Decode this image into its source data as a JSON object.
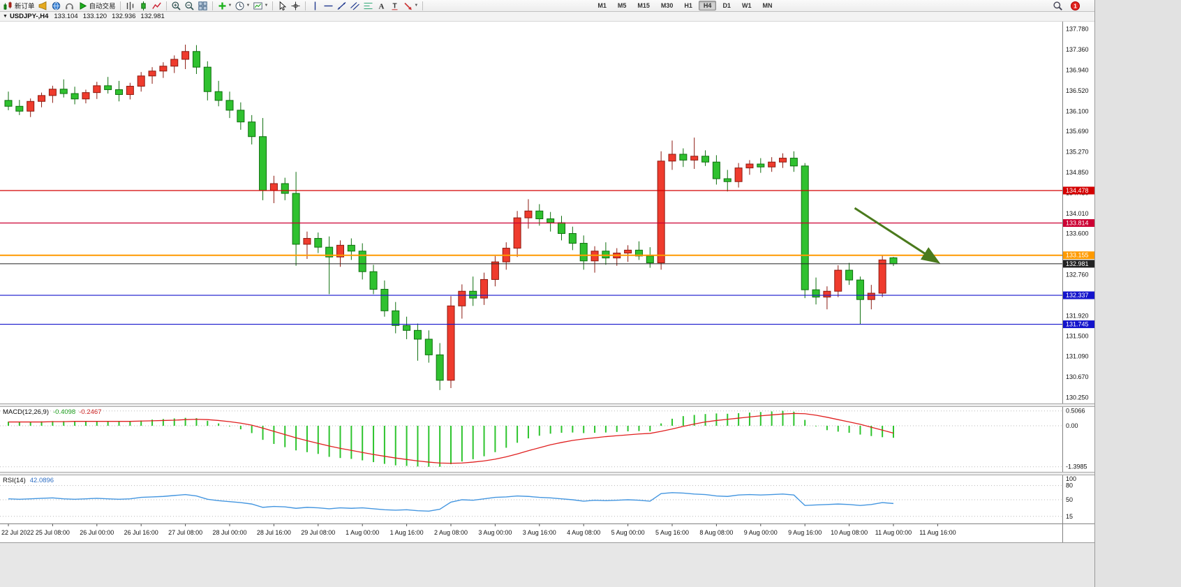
{
  "window": {
    "dropdown_glyph": "▼",
    "title": {
      "symbol_period": "USDJPY-,H4",
      "open": "133.104",
      "high": "133.120",
      "low": "132.936",
      "close": "132.981"
    }
  },
  "toolbar": {
    "buttons": [
      {
        "name": "new-order-button",
        "icon": "new-order",
        "label": "新订单"
      },
      {
        "name": "alert-horn-button",
        "icon": "horn"
      },
      {
        "name": "market-watch-button",
        "icon": "globe"
      },
      {
        "name": "support-button",
        "icon": "headset"
      },
      {
        "name": "autotrading-button",
        "icon": "play",
        "label": "自动交易"
      },
      {
        "sep": true
      },
      {
        "name": "bar-chart-button",
        "icon": "bars"
      },
      {
        "name": "candlestick-chart-button",
        "icon": "candle"
      },
      {
        "name": "line-chart-button",
        "icon": "linechart"
      },
      {
        "sep": true
      },
      {
        "name": "zoom-in-button",
        "icon": "zoomin"
      },
      {
        "name": "zoom-out-button",
        "icon": "zoomout"
      },
      {
        "name": "tile-windows-button",
        "icon": "grid"
      },
      {
        "sep": true
      },
      {
        "name": "indicators-button",
        "icon": "plus",
        "dd": true
      },
      {
        "name": "periods-button",
        "icon": "clock",
        "dd": true
      },
      {
        "name": "templates-button",
        "icon": "template",
        "dd": true
      },
      {
        "sep": true
      },
      {
        "name": "cursor-button",
        "icon": "cursor"
      },
      {
        "name": "crosshair-button",
        "icon": "cross"
      },
      {
        "sep": true
      },
      {
        "name": "vertical-line-button",
        "icon": "vline"
      },
      {
        "name": "horizontal-line-button",
        "icon": "hline"
      },
      {
        "name": "trendline-button",
        "icon": "tline"
      },
      {
        "name": "equidistant-channel-button",
        "icon": "channel"
      },
      {
        "name": "fibonacci-button",
        "icon": "fibo"
      },
      {
        "name": "text-button",
        "icon": "textA"
      },
      {
        "name": "text-label-button",
        "icon": "textT"
      },
      {
        "name": "arrows-button",
        "icon": "arrowsym",
        "dd": true
      },
      {
        "sep": true
      }
    ],
    "timeframes": [
      "M1",
      "M5",
      "M15",
      "M30",
      "H1",
      "H4",
      "D1",
      "W1",
      "MN"
    ],
    "active_timeframe": "H4",
    "notification_count": "1"
  },
  "price_axis": {
    "ticks": [
      "137.780",
      "137.360",
      "136.940",
      "136.520",
      "136.100",
      "135.690",
      "135.270",
      "134.850",
      "134.430",
      "134.010",
      "133.600",
      "132.760",
      "131.920",
      "131.500",
      "131.090",
      "130.670",
      "130.250"
    ]
  },
  "price_tags": [
    {
      "value": "134.478",
      "color": "#d40000"
    },
    {
      "value": "133.814",
      "color": "#cc0033"
    },
    {
      "value": "133.155",
      "color": "#ff9a00"
    },
    {
      "value": "132.981",
      "color": "#222222"
    },
    {
      "value": "132.337",
      "color": "#1414cc"
    },
    {
      "value": "131.745",
      "color": "#1414cc"
    }
  ],
  "time_axis": {
    "labels": [
      "22 Jul 2022",
      "25 Jul 08:00",
      "26 Jul 00:00",
      "26 Jul 16:00",
      "27 Jul 08:00",
      "28 Jul 00:00",
      "28 Jul 16:00",
      "29 Jul 08:00",
      "1 Aug 00:00",
      "1 Aug 16:00",
      "2 Aug 08:00",
      "3 Aug 00:00",
      "3 Aug 16:00",
      "4 Aug 08:00",
      "5 Aug 00:00",
      "5 Aug 16:00",
      "8 Aug 08:00",
      "9 Aug 00:00",
      "9 Aug 16:00",
      "10 Aug 08:00",
      "11 Aug 00:00",
      "11 Aug 16:00"
    ]
  },
  "macd_panel": {
    "name": "MACD(12,26,9)",
    "value_main": "-0.4098",
    "value_signal": "-0.2467",
    "scale_labels": [
      "0.5066",
      "0.00",
      "-1.3985"
    ]
  },
  "rsi_panel": {
    "name": "RSI(14)",
    "value": "42.0896",
    "scale_labels": [
      "100",
      "80",
      "50",
      "15"
    ]
  },
  "colors": {
    "bull": "#ef3b2d",
    "bull_stroke": "#8c1a10",
    "bear": "#2fc12f",
    "bear_stroke": "#0e6f0e",
    "macd_hist": "#2dc42d",
    "macd_signal": "#e02020",
    "rsi_line": "#4496e0",
    "axis_text": "#111111",
    "arrow": "#4a7a1c"
  },
  "chart_data": [
    {
      "type": "candlestick",
      "title": "USDJPY- H4",
      "x_start": "2022.07.22 16:00",
      "x_step_hours": 4,
      "note": "H4 bars, weekends skipped; last bar OHLC shown in title",
      "ylim": [
        130.13,
        137.93
      ],
      "ohlc": [
        [
          136.32,
          136.5,
          136.12,
          136.2
        ],
        [
          136.2,
          136.33,
          136.02,
          136.1
        ],
        [
          136.1,
          136.36,
          135.98,
          136.3
        ],
        [
          136.3,
          136.48,
          136.18,
          136.42
        ],
        [
          136.42,
          136.62,
          136.27,
          136.55
        ],
        [
          136.55,
          136.75,
          136.38,
          136.46
        ],
        [
          136.46,
          136.6,
          136.24,
          136.35
        ],
        [
          136.35,
          136.54,
          136.26,
          136.48
        ],
        [
          136.48,
          136.7,
          136.35,
          136.62
        ],
        [
          136.62,
          136.8,
          136.46,
          136.54
        ],
        [
          136.54,
          136.72,
          136.3,
          136.44
        ],
        [
          136.44,
          136.68,
          136.34,
          136.61
        ],
        [
          136.61,
          136.9,
          136.5,
          136.82
        ],
        [
          136.82,
          137.0,
          136.66,
          136.92
        ],
        [
          136.92,
          137.1,
          136.78,
          137.02
        ],
        [
          137.02,
          137.24,
          136.88,
          137.16
        ],
        [
          137.16,
          137.46,
          136.96,
          137.32
        ],
        [
          137.32,
          137.45,
          136.86,
          137.0
        ],
        [
          137.0,
          137.12,
          136.32,
          136.5
        ],
        [
          136.5,
          136.72,
          136.2,
          136.32
        ],
        [
          136.32,
          136.5,
          135.96,
          136.12
        ],
        [
          136.12,
          136.28,
          135.72,
          135.88
        ],
        [
          135.88,
          136.02,
          135.42,
          135.58
        ],
        [
          135.58,
          135.96,
          134.28,
          134.48
        ],
        [
          134.48,
          134.78,
          134.22,
          134.62
        ],
        [
          134.62,
          134.74,
          134.28,
          134.42
        ],
        [
          134.42,
          134.86,
          132.94,
          133.38
        ],
        [
          133.38,
          133.64,
          133.08,
          133.5
        ],
        [
          133.5,
          133.62,
          133.2,
          133.32
        ],
        [
          133.32,
          133.54,
          132.36,
          133.12
        ],
        [
          133.12,
          133.46,
          132.92,
          133.36
        ],
        [
          133.36,
          133.5,
          133.06,
          133.24
        ],
        [
          133.24,
          133.4,
          132.66,
          132.82
        ],
        [
          132.82,
          132.96,
          132.36,
          132.46
        ],
        [
          132.46,
          132.64,
          131.9,
          132.02
        ],
        [
          132.02,
          132.2,
          131.56,
          131.72
        ],
        [
          131.72,
          131.9,
          131.44,
          131.62
        ],
        [
          131.62,
          131.76,
          131.0,
          131.44
        ],
        [
          131.44,
          131.62,
          130.96,
          131.12
        ],
        [
          131.12,
          131.36,
          130.4,
          130.6
        ],
        [
          130.6,
          132.32,
          130.44,
          132.12
        ],
        [
          132.12,
          132.56,
          131.86,
          132.42
        ],
        [
          132.42,
          132.72,
          132.12,
          132.28
        ],
        [
          132.28,
          132.8,
          132.14,
          132.66
        ],
        [
          132.66,
          133.14,
          132.52,
          133.02
        ],
        [
          133.02,
          133.42,
          132.86,
          133.3
        ],
        [
          133.3,
          134.06,
          133.12,
          133.92
        ],
        [
          133.92,
          134.3,
          133.7,
          134.06
        ],
        [
          134.06,
          134.2,
          133.76,
          133.9
        ],
        [
          133.9,
          134.04,
          133.64,
          133.82
        ],
        [
          133.82,
          133.96,
          133.46,
          133.6
        ],
        [
          133.6,
          133.74,
          133.26,
          133.4
        ],
        [
          133.4,
          133.56,
          132.86,
          133.04
        ],
        [
          133.04,
          133.34,
          132.8,
          133.24
        ],
        [
          133.24,
          133.42,
          132.96,
          133.1
        ],
        [
          133.1,
          133.3,
          132.94,
          133.2
        ],
        [
          133.2,
          133.36,
          133.02,
          133.26
        ],
        [
          133.26,
          133.44,
          133.06,
          133.14
        ],
        [
          133.14,
          133.32,
          132.9,
          133.0
        ],
        [
          133.0,
          135.28,
          132.86,
          135.08
        ],
        [
          135.08,
          135.5,
          134.9,
          135.22
        ],
        [
          135.22,
          135.34,
          134.96,
          135.1
        ],
        [
          135.1,
          135.56,
          134.92,
          135.18
        ],
        [
          135.18,
          135.3,
          134.98,
          135.06
        ],
        [
          135.06,
          135.2,
          134.6,
          134.72
        ],
        [
          134.72,
          134.9,
          134.46,
          134.66
        ],
        [
          134.66,
          135.04,
          134.54,
          134.94
        ],
        [
          134.94,
          135.1,
          134.8,
          135.02
        ],
        [
          135.02,
          135.14,
          134.84,
          134.96
        ],
        [
          134.96,
          135.16,
          134.86,
          135.06
        ],
        [
          135.06,
          135.24,
          134.94,
          135.14
        ],
        [
          135.14,
          135.28,
          134.86,
          134.98
        ],
        [
          134.98,
          135.04,
          132.28,
          132.45
        ],
        [
          132.45,
          132.7,
          132.15,
          132.3
        ],
        [
          132.3,
          132.52,
          132.05,
          132.42
        ],
        [
          132.42,
          132.95,
          132.3,
          132.85
        ],
        [
          132.85,
          133.0,
          132.55,
          132.65
        ],
        [
          132.65,
          132.72,
          131.75,
          132.25
        ],
        [
          132.25,
          132.55,
          132.05,
          132.38
        ],
        [
          132.38,
          133.15,
          132.3,
          133.06
        ],
        [
          133.104,
          133.12,
          132.936,
          132.981
        ]
      ],
      "horizontal_lines": [
        {
          "price": 134.478,
          "color": "#d40000",
          "width": 1.2
        },
        {
          "price": 133.814,
          "color": "#cc0033",
          "width": 1.2
        },
        {
          "price": 133.155,
          "color": "#ff9a00",
          "width": 2
        },
        {
          "price": 132.981,
          "color": "#222222",
          "width": 1
        },
        {
          "price": 132.337,
          "color": "#1414cc",
          "width": 1.2
        },
        {
          "price": 131.745,
          "color": "#1414cc",
          "width": 1.2
        }
      ],
      "annotation_arrow": {
        "from": {
          "bar": 76.5,
          "price": 134.12
        },
        "to": {
          "bar": 84,
          "price": 133.02
        },
        "color": "#4a7a1c"
      }
    },
    {
      "type": "bar",
      "title": "MACD(12,26,9)",
      "ylim": [
        -1.52,
        0.62
      ],
      "scale_labels": [
        0.5066,
        0.0,
        -1.3985
      ],
      "histogram": [
        0.14,
        0.13,
        0.14,
        0.15,
        0.16,
        0.16,
        0.15,
        0.15,
        0.16,
        0.16,
        0.15,
        0.16,
        0.18,
        0.21,
        0.23,
        0.25,
        0.27,
        0.26,
        0.17,
        0.08,
        -0.02,
        -0.12,
        -0.25,
        -0.48,
        -0.62,
        -0.73,
        -0.84,
        -0.9,
        -0.96,
        -1.06,
        -1.1,
        -1.13,
        -1.18,
        -1.24,
        -1.3,
        -1.35,
        -1.37,
        -1.39,
        -1.4,
        -1.4,
        -1.31,
        -1.22,
        -1.14,
        -1.04,
        -0.9,
        -0.75,
        -0.58,
        -0.43,
        -0.34,
        -0.27,
        -0.24,
        -0.23,
        -0.25,
        -0.24,
        -0.23,
        -0.21,
        -0.19,
        -0.18,
        -0.19,
        0.08,
        0.24,
        0.33,
        0.37,
        0.4,
        0.42,
        0.41,
        0.43,
        0.45,
        0.47,
        0.49,
        0.51,
        0.48,
        0.2,
        -0.02,
        -0.15,
        -0.2,
        -0.24,
        -0.3,
        -0.35,
        -0.39,
        -0.41
      ],
      "signal_line": [
        0.13,
        0.13,
        0.13,
        0.13,
        0.14,
        0.14,
        0.15,
        0.15,
        0.15,
        0.15,
        0.15,
        0.15,
        0.16,
        0.17,
        0.18,
        0.19,
        0.21,
        0.22,
        0.21,
        0.18,
        0.14,
        0.09,
        0.02,
        -0.08,
        -0.19,
        -0.3,
        -0.41,
        -0.51,
        -0.6,
        -0.69,
        -0.77,
        -0.84,
        -0.91,
        -0.98,
        -1.04,
        -1.1,
        -1.15,
        -1.2,
        -1.24,
        -1.27,
        -1.28,
        -1.27,
        -1.24,
        -1.2,
        -1.14,
        -1.06,
        -0.96,
        -0.85,
        -0.75,
        -0.65,
        -0.57,
        -0.5,
        -0.45,
        -0.41,
        -0.37,
        -0.34,
        -0.31,
        -0.28,
        -0.26,
        -0.19,
        -0.11,
        -0.02,
        0.06,
        0.13,
        0.18,
        0.22,
        0.26,
        0.3,
        0.34,
        0.37,
        0.4,
        0.42,
        0.41,
        0.36,
        0.29,
        0.21,
        0.13,
        0.05,
        -0.05,
        -0.15,
        -0.25
      ],
      "current_values": [
        -0.4098,
        -0.2467
      ]
    },
    {
      "type": "line",
      "title": "RSI(14)",
      "ylim": [
        0,
        100
      ],
      "levels": [
        80,
        50,
        15
      ],
      "current": 42.0896,
      "values": [
        52,
        51,
        52,
        53,
        54,
        52,
        51,
        52,
        53,
        52,
        51,
        52,
        55,
        56,
        57,
        59,
        61,
        58,
        51,
        48,
        46,
        44,
        41,
        34,
        36,
        35,
        32,
        34,
        33,
        31,
        33,
        32,
        33,
        31,
        29,
        28,
        29,
        27,
        26,
        30,
        45,
        50,
        49,
        52,
        55,
        56,
        58,
        57,
        55,
        54,
        52,
        50,
        47,
        49,
        48,
        49,
        50,
        49,
        47,
        63,
        65,
        64,
        62,
        61,
        58,
        57,
        60,
        61,
        60,
        61,
        62,
        60,
        38,
        39,
        40,
        41,
        40,
        38,
        40,
        44,
        42.1
      ]
    }
  ]
}
